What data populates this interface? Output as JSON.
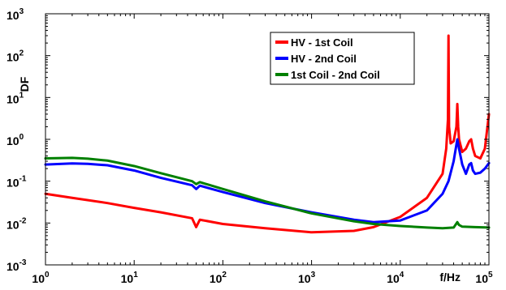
{
  "chart_data": {
    "type": "line",
    "title": "",
    "xlabel": "f/Hz",
    "ylabel": "DF",
    "xscale": "log",
    "yscale": "log",
    "xlim": [
      1,
      100000
    ],
    "ylim": [
      0.001,
      1000
    ],
    "grid": false,
    "legend_position": "top-right",
    "x_ticks": [
      {
        "base": "10",
        "exp": "0"
      },
      {
        "base": "10",
        "exp": "1"
      },
      {
        "base": "10",
        "exp": "2"
      },
      {
        "base": "10",
        "exp": "3"
      },
      {
        "base": "10",
        "exp": "4"
      },
      {
        "base": "10",
        "exp": "5"
      }
    ],
    "y_ticks": [
      {
        "base": "10",
        "exp": "-3"
      },
      {
        "base": "10",
        "exp": "-2"
      },
      {
        "base": "10",
        "exp": "-1"
      },
      {
        "base": "10",
        "exp": "0"
      },
      {
        "base": "10",
        "exp": "1"
      },
      {
        "base": "10",
        "exp": "2"
      },
      {
        "base": "10",
        "exp": "3"
      }
    ],
    "series": [
      {
        "name": "HV - 1st Coil",
        "color": "#ff0000",
        "x": [
          1,
          2,
          5,
          10,
          20,
          45,
          50,
          55,
          100,
          300,
          1000,
          3000,
          5000,
          10000,
          20000,
          30000,
          33000,
          34500,
          35000,
          35500,
          37000,
          40000,
          43000,
          44000,
          45000,
          46000,
          50000,
          55000,
          60000,
          63000,
          66000,
          70000,
          80000,
          90000,
          100000
        ],
        "y": [
          0.05,
          0.04,
          0.03,
          0.023,
          0.018,
          0.013,
          0.008,
          0.012,
          0.0095,
          0.0075,
          0.006,
          0.0065,
          0.008,
          0.014,
          0.04,
          0.15,
          0.6,
          3.0,
          300,
          2.0,
          0.8,
          0.9,
          2.0,
          7.0,
          2.0,
          1.0,
          0.5,
          0.6,
          0.9,
          1.0,
          0.6,
          0.4,
          0.35,
          0.6,
          4.0
        ]
      },
      {
        "name": "HV - 2nd Coil",
        "color": "#0000ff",
        "x": [
          1,
          2,
          3,
          5,
          10,
          20,
          45,
          50,
          55,
          100,
          300,
          1000,
          3000,
          5000,
          10000,
          20000,
          30000,
          35000,
          40000,
          44000,
          46000,
          50000,
          55000,
          60000,
          63000,
          66000,
          70000,
          80000,
          90000,
          100000
        ],
        "y": [
          0.25,
          0.265,
          0.26,
          0.24,
          0.18,
          0.12,
          0.08,
          0.065,
          0.078,
          0.055,
          0.03,
          0.018,
          0.012,
          0.0105,
          0.0115,
          0.02,
          0.05,
          0.1,
          0.3,
          1.0,
          0.6,
          0.25,
          0.15,
          0.25,
          0.27,
          0.18,
          0.15,
          0.16,
          0.2,
          0.27
        ]
      },
      {
        "name": "1st Coil - 2nd Coil",
        "color": "#008000",
        "x": [
          1,
          2,
          3,
          5,
          10,
          20,
          45,
          50,
          55,
          100,
          300,
          1000,
          3000,
          5000,
          10000,
          20000,
          30000,
          40000,
          44000,
          46000,
          50000,
          70000,
          100000
        ],
        "y": [
          0.35,
          0.36,
          0.345,
          0.31,
          0.23,
          0.155,
          0.1,
          0.085,
          0.095,
          0.065,
          0.033,
          0.017,
          0.011,
          0.0095,
          0.0085,
          0.0078,
          0.0075,
          0.0078,
          0.0105,
          0.009,
          0.0082,
          0.008,
          0.0078
        ]
      }
    ]
  }
}
